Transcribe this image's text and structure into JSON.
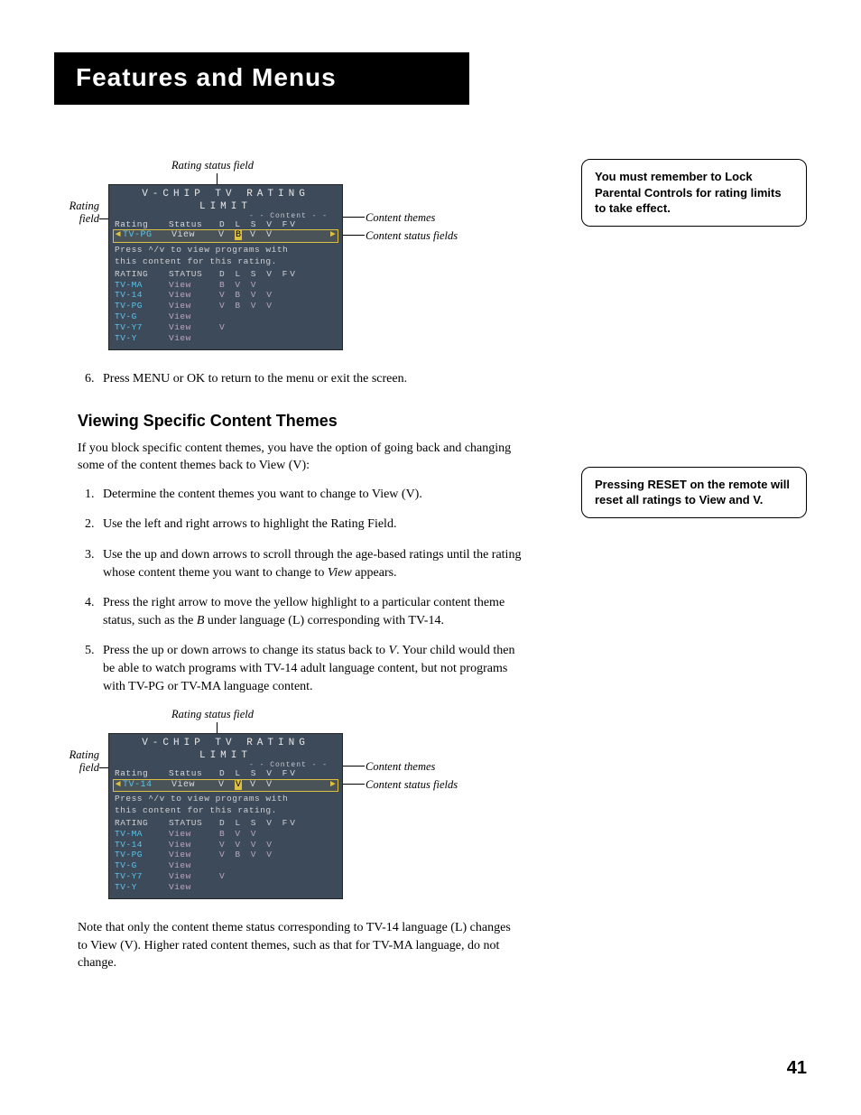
{
  "page": {
    "title": "Features and Menus",
    "number": "41"
  },
  "callout1": "You must remember to Lock Parental Controls for rating limits to take effect.",
  "callout2": "Pressing RESET on the remote will reset all ratings to View and V.",
  "figure_labels": {
    "top": "Rating status field",
    "left_top": "Rating",
    "left_bot": "field",
    "right1": "Content themes",
    "right2": "Content status fields"
  },
  "vchip": {
    "title": "V-CHIP TV RATING LIMIT",
    "content_label": "- - Content - -",
    "col_rating": "Rating",
    "col_status": "Status",
    "col_letters": "D  L  S  V  FV",
    "hint1": "Press ^/v to view programs with",
    "hint2": "this content for this rating.",
    "tbl_rating": "RATING",
    "tbl_status": "STATUS",
    "tbl_letters": "D  L  S  V  FV"
  },
  "fig1": {
    "sel_name": "TV-PG",
    "sel_status": "View",
    "sel_vals_before": "V ",
    "sel_highlight": "B",
    "sel_vals_after": " V  V",
    "rows": [
      {
        "rating": "TV-MA",
        "status": "View",
        "vals": "   B  V  V"
      },
      {
        "rating": "TV-14",
        "status": "View",
        "vals": "V  B  V  V"
      },
      {
        "rating": "TV-PG",
        "status": "View",
        "vals": "V  B  V  V"
      },
      {
        "rating": "TV-G",
        "status": "View",
        "vals": ""
      },
      {
        "rating": "TV-Y7",
        "status": "View",
        "vals": "            V"
      },
      {
        "rating": "TV-Y",
        "status": "View",
        "vals": ""
      }
    ]
  },
  "fig2": {
    "sel_name": "TV-14",
    "sel_status": "View",
    "sel_vals_before": "V ",
    "sel_highlight": "V",
    "sel_vals_after": " V  V",
    "rows": [
      {
        "rating": "TV-MA",
        "status": "View",
        "vals": "   B  V  V"
      },
      {
        "rating": "TV-14",
        "status": "View",
        "vals": "V  V  V  V"
      },
      {
        "rating": "TV-PG",
        "status": "View",
        "vals": "V  B  V  V"
      },
      {
        "rating": "TV-G",
        "status": "View",
        "vals": ""
      },
      {
        "rating": "TV-Y7",
        "status": "View",
        "vals": "            V"
      },
      {
        "rating": "TV-Y",
        "status": "View",
        "vals": ""
      }
    ]
  },
  "step6": "Press MENU or OK to return to the menu or exit the screen.",
  "section_heading": "Viewing Specific Content Themes",
  "intro": "If you block specific content themes, you have the option of going back and changing some of the content themes back to View (V):",
  "steps": {
    "s1": "Determine the content themes you want to change to View (V).",
    "s2": "Use the left and right arrows to highlight the Rating Field.",
    "s3a": "Use the up and down arrows to scroll through the age-based ratings until the rating whose content theme you want to change to ",
    "s3b": "View",
    "s3c": " appears.",
    "s4a": "Press the right arrow to move the yellow highlight to a particular content theme status, such as the ",
    "s4b": "B",
    "s4c": " under language (L) corresponding with TV-14.",
    "s5a": "Press the up or down arrows to change its status back to ",
    "s5b": "V",
    "s5c": ".  Your child would then be able to watch programs with TV-14 adult language content, but not programs with  TV-PG or TV-MA language content."
  },
  "note": "Note that only the content theme status corresponding to TV-14 language (L) changes to View (V). Higher rated content themes, such as that for TV-MA language, do not change.",
  "colors": {
    "screen_bg": "#3d4a5a",
    "highlight": "#e0c040",
    "cyan": "#5fc2e8",
    "grey_text": "#c5c7cc"
  }
}
